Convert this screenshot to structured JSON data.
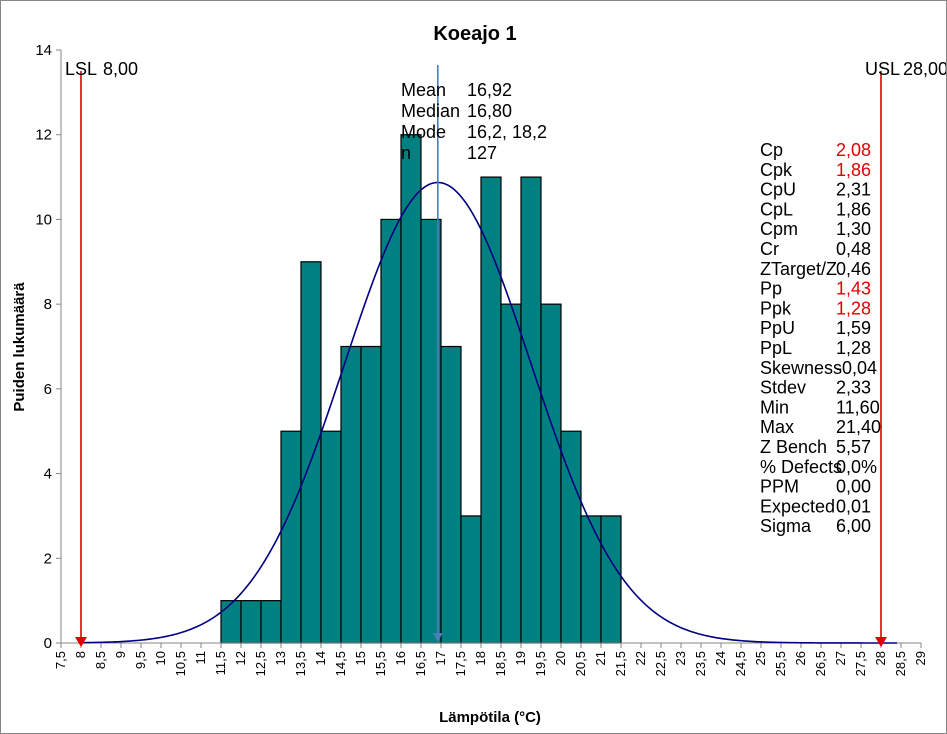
{
  "chart_data": {
    "type": "bar",
    "title": "Koeajo 1",
    "xlabel": "Lämpötila (°C)",
    "ylabel": "Puiden lukumäärä",
    "xlim": [
      7.5,
      29
    ],
    "ylim": [
      0,
      14
    ],
    "y_ticks": [
      "0",
      "2",
      "4",
      "6",
      "8",
      "10",
      "12",
      "14"
    ],
    "x_ticks": [
      "7,5",
      "8",
      "8,5",
      "9",
      "9,5",
      "10",
      "10,5",
      "11",
      "11,5",
      "12",
      "12,5",
      "13",
      "13,5",
      "14",
      "14,5",
      "15",
      "15,5",
      "16",
      "16,5",
      "17",
      "17,5",
      "18",
      "18,5",
      "19",
      "19,5",
      "20",
      "20,5",
      "21",
      "21,5",
      "22",
      "22,5",
      "23",
      "23,5",
      "24",
      "24,5",
      "25",
      "25,5",
      "26",
      "26,5",
      "27",
      "27,5",
      "28",
      "28,5",
      "29"
    ],
    "bins": [
      {
        "x0": 11.5,
        "x1": 12.0,
        "count": 1
      },
      {
        "x0": 12.0,
        "x1": 12.5,
        "count": 1
      },
      {
        "x0": 12.5,
        "x1": 13.0,
        "count": 1
      },
      {
        "x0": 13.0,
        "x1": 13.5,
        "count": 5
      },
      {
        "x0": 13.5,
        "x1": 14.0,
        "count": 9
      },
      {
        "x0": 14.0,
        "x1": 14.5,
        "count": 5
      },
      {
        "x0": 14.5,
        "x1": 15.0,
        "count": 7
      },
      {
        "x0": 15.0,
        "x1": 15.5,
        "count": 7
      },
      {
        "x0": 15.5,
        "x1": 16.0,
        "count": 10
      },
      {
        "x0": 16.0,
        "x1": 16.5,
        "count": 12
      },
      {
        "x0": 16.5,
        "x1": 17.0,
        "count": 10
      },
      {
        "x0": 17.0,
        "x1": 17.5,
        "count": 7
      },
      {
        "x0": 17.5,
        "x1": 18.0,
        "count": 3
      },
      {
        "x0": 18.0,
        "x1": 18.5,
        "count": 11
      },
      {
        "x0": 18.5,
        "x1": 19.0,
        "count": 8
      },
      {
        "x0": 19.0,
        "x1": 19.5,
        "count": 11
      },
      {
        "x0": 19.5,
        "x1": 20.0,
        "count": 8
      },
      {
        "x0": 20.0,
        "x1": 20.5,
        "count": 5
      },
      {
        "x0": 20.5,
        "x1": 21.0,
        "count": 3
      },
      {
        "x0": 21.0,
        "x1": 21.5,
        "count": 3
      }
    ],
    "bar_color": "#008080",
    "curve_color": "#000080",
    "limit_color": "#E00000",
    "mean_line_color": "#4A7EBB",
    "normal_curve": {
      "mean": 16.92,
      "stdev": 2.33,
      "n": 127,
      "bin_width": 0.5
    },
    "mean_value": 16.92,
    "lsl": {
      "label": "LSL",
      "value": 8.0,
      "text": "8,00"
    },
    "usl": {
      "label": "USL",
      "value": 28.0,
      "text": "28,00"
    },
    "center_stats": [
      {
        "label": "Mean",
        "value": "16,92"
      },
      {
        "label": "Median",
        "value": "16,80"
      },
      {
        "label": "Mode",
        "value": "16,2, 18,2"
      },
      {
        "label": "n",
        "value": "127"
      }
    ],
    "capability_stats": [
      {
        "label": "Cp",
        "value": "2,08",
        "highlight": true
      },
      {
        "label": "Cpk",
        "value": "1,86",
        "highlight": true
      },
      {
        "label": "CpU",
        "value": "2,31",
        "highlight": false
      },
      {
        "label": "CpL",
        "value": "1,86",
        "highlight": false
      },
      {
        "label": "Cpm",
        "value": "1,30",
        "highlight": false
      },
      {
        "label": "Cr",
        "value": "0,48",
        "highlight": false
      },
      {
        "label": "ZTarget/Z",
        "value": "0,46",
        "highlight": false
      },
      {
        "label": "Pp",
        "value": "1,43",
        "highlight": true
      },
      {
        "label": "Ppk",
        "value": "1,28",
        "highlight": true
      },
      {
        "label": "PpU",
        "value": "1,59",
        "highlight": false
      },
      {
        "label": "PpL",
        "value": "1,28",
        "highlight": false
      },
      {
        "label": "Skewness",
        "value": "-0,04",
        "highlight": false
      },
      {
        "label": "Stdev",
        "value": "2,33",
        "highlight": false
      },
      {
        "label": "Min",
        "value": "11,60",
        "highlight": false
      },
      {
        "label": "Max",
        "value": "21,40",
        "highlight": false
      },
      {
        "label": "Z Bench",
        "value": "5,57",
        "highlight": false
      },
      {
        "label": "% Defects",
        "value": "0,0%",
        "highlight": false
      },
      {
        "label": "PPM",
        "value": "0,00",
        "highlight": false
      },
      {
        "label": "Expected",
        "value": "0,01",
        "highlight": false
      },
      {
        "label": "Sigma",
        "value": "6,00",
        "highlight": false
      }
    ]
  }
}
